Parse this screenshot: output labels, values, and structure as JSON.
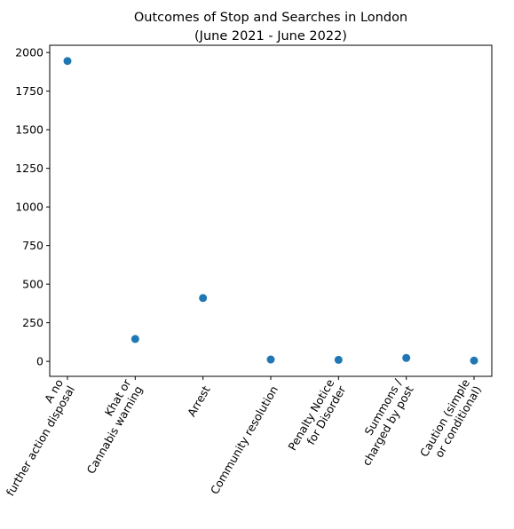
{
  "chart_data": {
    "type": "scatter",
    "title": "Outcomes of Stop and Searches in London\n(June 2021 - June 2022)",
    "xlabel": "",
    "ylabel": "",
    "categories": [
      "A no\nfurther action disposal",
      "Khat or\nCannabis warning",
      "Arrest",
      "Community resolution",
      "Penalty Notice\nfor Disorder",
      "Summons /\ncharged by post",
      "Caution (simple\nor conditional)"
    ],
    "values": [
      1945,
      145,
      410,
      12,
      10,
      22,
      5
    ],
    "ylim": [
      -97,
      2047
    ],
    "yticks": [
      0,
      250,
      500,
      750,
      1000,
      1250,
      1500,
      1750,
      2000
    ],
    "grid": false,
    "color": "#1f77b4"
  }
}
